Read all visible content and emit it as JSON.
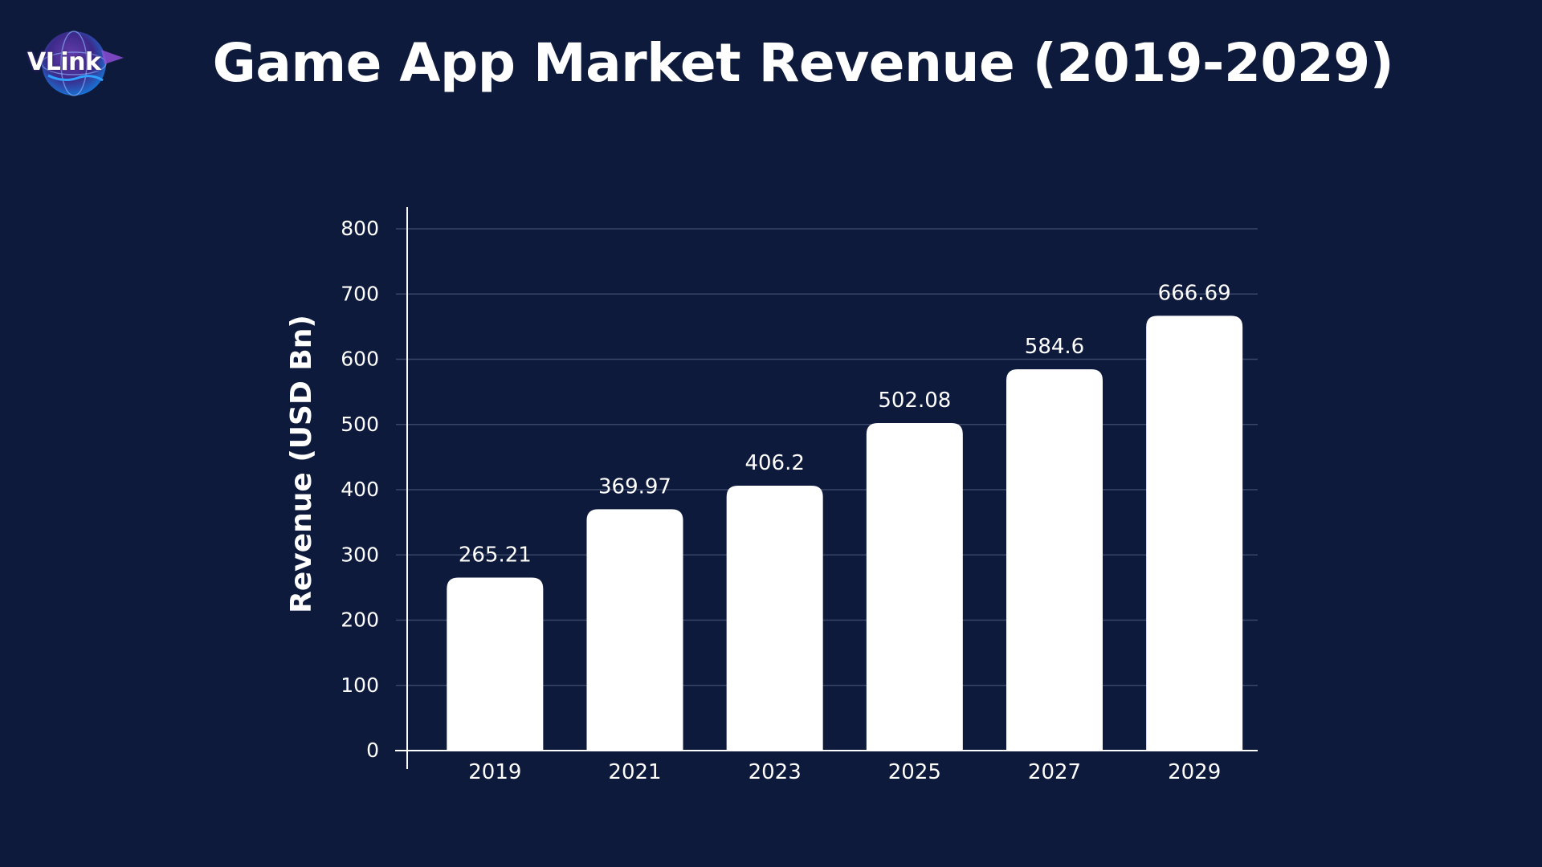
{
  "brand": {
    "logo_text": "VLink"
  },
  "colors": {
    "background": "#0e1a3c",
    "bar": "#ffffff",
    "gridline": "#3a4668",
    "text": "#ffffff"
  },
  "chart_data": {
    "type": "bar",
    "title": "Game App Market Revenue (2019-2029)",
    "xlabel": "",
    "ylabel": "Revenue (USD Bn)",
    "categories": [
      "2019",
      "2021",
      "2023",
      "2025",
      "2027",
      "2029"
    ],
    "values": [
      265.21,
      369.97,
      406.2,
      502.08,
      584.6,
      666.69
    ],
    "data_labels": [
      "265.21",
      "369.97",
      "406.2",
      "502.08",
      "584.6",
      "666.69"
    ],
    "ylim": [
      0,
      800
    ],
    "yticks": [
      0,
      100,
      200,
      300,
      400,
      500,
      600,
      700,
      800
    ],
    "grid": true,
    "legend": "none"
  }
}
